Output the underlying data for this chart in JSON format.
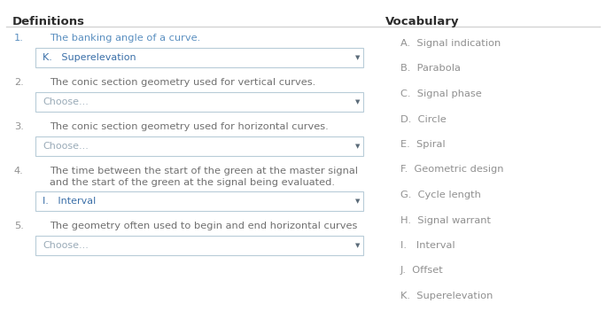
{
  "title_left": "Definitions",
  "title_right": "Vocabulary",
  "title_color": "#2c2c2c",
  "title_fontsize": 9.5,
  "header_line_color": "#c8c8c8",
  "definitions": [
    {
      "number": "1.",
      "text": "The banking angle of a curve.",
      "text2": "",
      "dropdown_text": "K.   Superelevation",
      "dropdown_text_color": "#3a6fa8",
      "is_answered": true
    },
    {
      "number": "2.",
      "text": "The conic section geometry used for vertical curves.",
      "text2": "",
      "dropdown_text": "Choose...",
      "dropdown_text_color": "#9aabb8",
      "is_answered": false
    },
    {
      "number": "3.",
      "text": "The conic section geometry used for horizontal curves.",
      "text2": "",
      "dropdown_text": "Choose...",
      "dropdown_text_color": "#9aabb8",
      "is_answered": false
    },
    {
      "number": "4.",
      "text": "The time between the start of the green at the master signal",
      "text2": "and the start of the green at the signal being evaluated.",
      "dropdown_text": "I.   Interval",
      "dropdown_text_color": "#3a6fa8",
      "is_answered": true
    },
    {
      "number": "5.",
      "text": "The geometry often used to begin and end horizontal curves",
      "text2": "",
      "dropdown_text": "Choose...",
      "dropdown_text_color": "#9aabb8",
      "is_answered": false
    }
  ],
  "vocabulary": [
    "A.  Signal indication",
    "B.  Parabola",
    "C.  Signal phase",
    "D.  Circle",
    "E.  Spiral",
    "F.  Geometric design",
    "G.  Cycle length",
    "H.  Signal warrant",
    "I.   Interval",
    "J.  Offset",
    "K.  Superelevation"
  ],
  "vocab_color": "#909090",
  "num_color": "#909090",
  "def_text_color": "#707070",
  "def_text_color_1": "#5a8fc0",
  "bg_color": "#ffffff",
  "dropdown_border_color": "#b8ccd8",
  "dropdown_fill": "#ffffff",
  "arrow_color": "#5a6a78",
  "divider_color": "#d0d0d0",
  "text_fontsize": 8.2,
  "vocab_fontsize": 8.2,
  "dropdown_fontsize": 8.0
}
